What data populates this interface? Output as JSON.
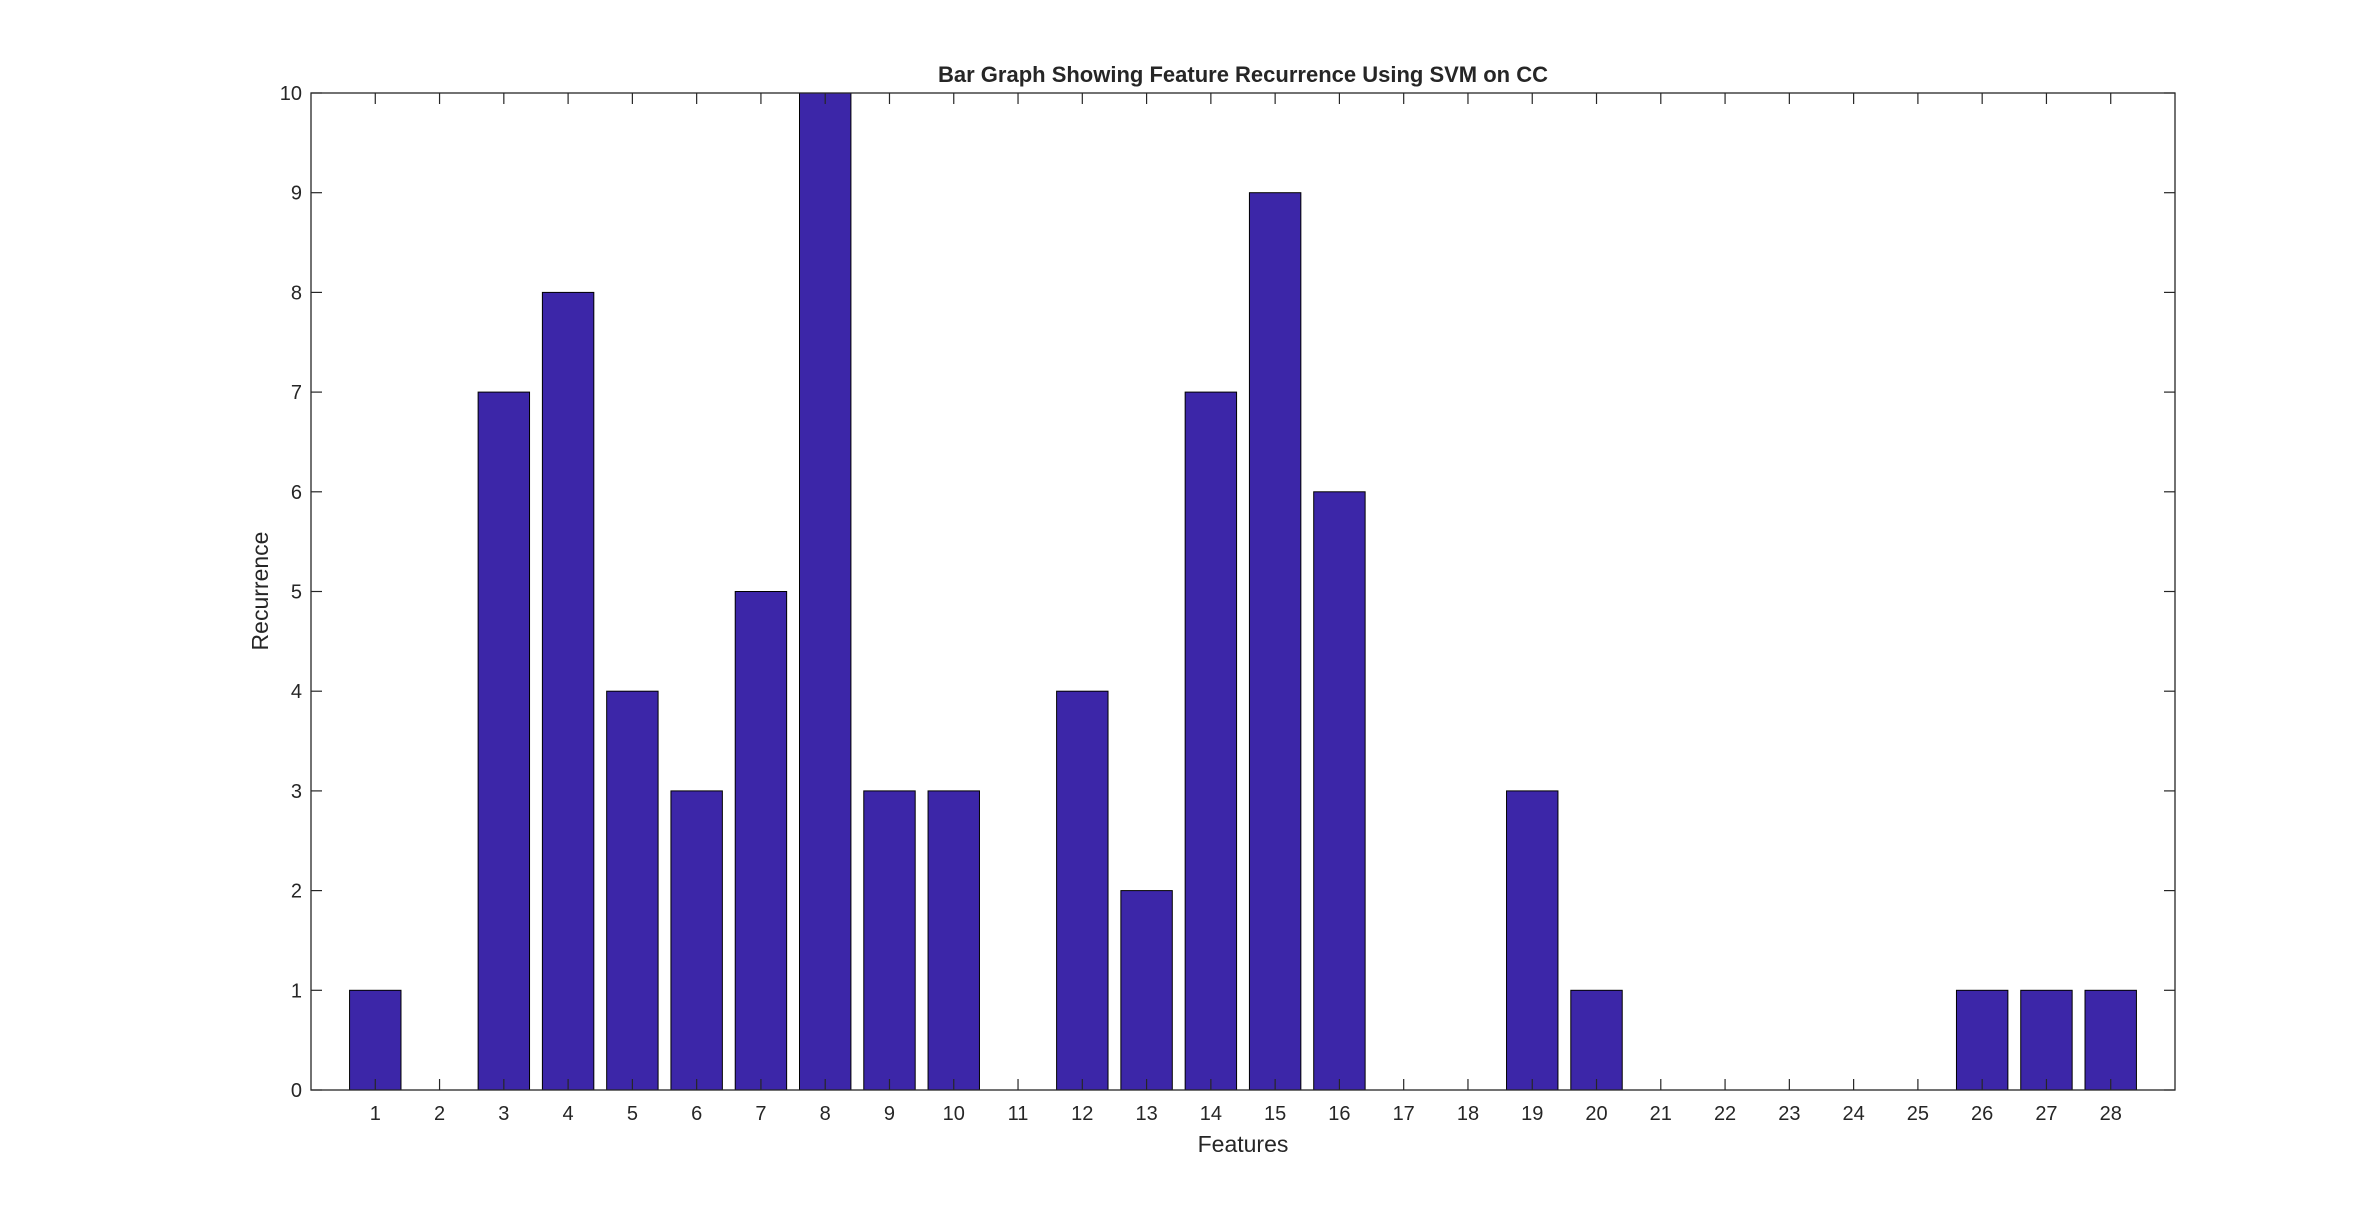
{
  "chart_data": {
    "type": "bar",
    "title": "Bar Graph Showing Feature Recurrence Using SVM on CC",
    "xlabel": "Features",
    "ylabel": "Recurrence",
    "categories": [
      "1",
      "2",
      "3",
      "4",
      "5",
      "6",
      "7",
      "8",
      "9",
      "10",
      "11",
      "12",
      "13",
      "14",
      "15",
      "16",
      "17",
      "18",
      "19",
      "20",
      "21",
      "22",
      "23",
      "24",
      "25",
      "26",
      "27",
      "28"
    ],
    "values": [
      1,
      0,
      7,
      8,
      4,
      3,
      5,
      10,
      3,
      3,
      0,
      4,
      2,
      7,
      9,
      6,
      0,
      0,
      3,
      1,
      0,
      0,
      0,
      0,
      0,
      1,
      1,
      1
    ],
    "xlim": [
      0,
      29
    ],
    "ylim": [
      0,
      10
    ],
    "yticks": [
      0,
      1,
      2,
      3,
      4,
      5,
      6,
      7,
      8,
      9,
      10
    ],
    "grid": false,
    "legend": "none",
    "colors": {
      "bar_fill": "#3c26a8",
      "bar_edge": "#000000",
      "axis": "#262626",
      "background": "#ffffff"
    }
  }
}
